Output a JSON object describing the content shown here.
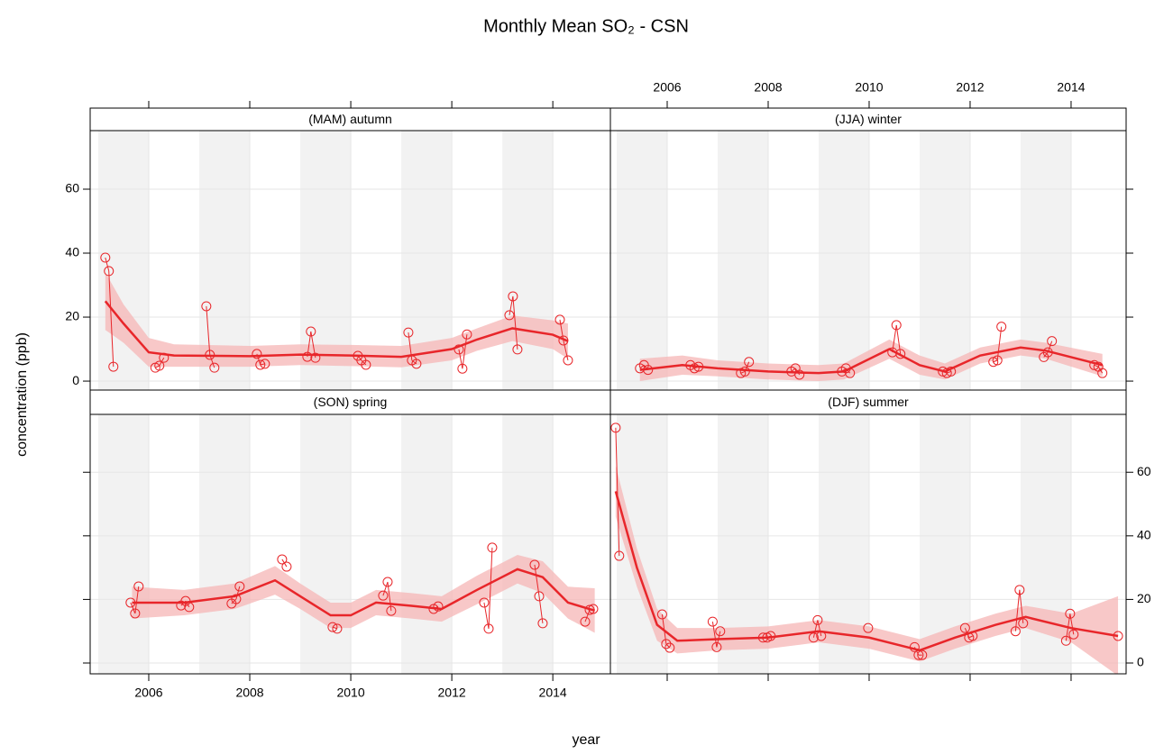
{
  "page": {
    "title": "Monthly Mean SO₂ - CSN",
    "x_label": "year",
    "y_label": "concentration (ppb)"
  },
  "chart_data": [
    {
      "type": "scatter",
      "title": "(MAM) autumn",
      "xlim": [
        2004.84,
        2015.14
      ],
      "ylim": [
        -2.8,
        78.3
      ],
      "xticks": [
        2006,
        2008,
        2010,
        2012,
        2014
      ],
      "yticks": [
        0,
        20,
        40,
        60
      ],
      "grid": true,
      "points": {
        "color": "#e8262a",
        "x": [
          2005.14,
          2005.21,
          2005.3,
          2006.13,
          2006.21,
          2006.3,
          2007.14,
          2007.21,
          2007.3,
          2008.14,
          2008.21,
          2008.3,
          2009.14,
          2009.21,
          2009.3,
          2010.14,
          2010.21,
          2010.3,
          2011.14,
          2011.21,
          2011.3,
          2012.14,
          2012.21,
          2012.3,
          2013.14,
          2013.21,
          2013.3,
          2014.14,
          2014.21,
          2014.3
        ],
        "y": [
          38.6,
          34.4,
          4.5,
          4.2,
          4.8,
          7.3,
          23.4,
          8.2,
          4.2,
          8.5,
          5.1,
          5.4,
          7.6,
          15.5,
          7.3,
          7.9,
          6.5,
          5.1,
          15.2,
          6.5,
          5.4,
          9.9,
          3.9,
          14.6,
          20.6,
          26.5,
          9.9,
          19.2,
          12.7,
          6.5
        ]
      },
      "trend": {
        "color": "#e8262a",
        "band_color": "#f5b5b5",
        "x": [
          2005.14,
          2005.5,
          2006,
          2006.5,
          2008,
          2009,
          2010,
          2011,
          2012,
          2012.5,
          2013.2,
          2014,
          2014.3
        ],
        "y": [
          25,
          18,
          9,
          8,
          7.8,
          8.3,
          8,
          7.6,
          10,
          13,
          16.5,
          14.5,
          12.5
        ],
        "lower": [
          16,
          12,
          4.5,
          4.5,
          4.5,
          5,
          4.7,
          4.3,
          6.5,
          9.5,
          12.5,
          10,
          7
        ],
        "upper": [
          34,
          24,
          13.5,
          11.5,
          11,
          11.5,
          11.3,
          11,
          13.5,
          16.5,
          20.5,
          19,
          18
        ]
      }
    },
    {
      "type": "scatter",
      "title": "(JJA) winter",
      "xlim": [
        2004.875,
        2015.09
      ],
      "ylim": [
        -2.8,
        78.3
      ],
      "xticks": [
        2006,
        2008,
        2010,
        2012,
        2014
      ],
      "yticks": [
        0,
        20,
        40,
        60
      ],
      "grid": true,
      "points": {
        "color": "#e8262a",
        "x": [
          2005.46,
          2005.54,
          2005.62,
          2006.46,
          2006.54,
          2006.62,
          2007.46,
          2007.54,
          2007.62,
          2008.46,
          2008.54,
          2008.62,
          2009.46,
          2009.54,
          2009.62,
          2010.46,
          2010.54,
          2010.62,
          2011.46,
          2011.54,
          2011.62,
          2012.46,
          2012.54,
          2012.62,
          2013.46,
          2013.54,
          2013.62,
          2014.46,
          2014.54,
          2014.62
        ],
        "y": [
          4,
          5,
          3.5,
          5,
          4,
          4.5,
          2.5,
          3,
          6,
          3,
          4,
          2,
          3,
          4,
          2.5,
          9,
          17.5,
          8.5,
          3,
          2.5,
          3,
          6,
          6.5,
          17,
          7.5,
          9,
          12.5,
          5,
          4.5,
          2.5
        ]
      },
      "trend": {
        "color": "#e8262a",
        "band_color": "#f5b5b5",
        "x": [
          2005.46,
          2006.3,
          2007,
          2008,
          2009,
          2009.5,
          2010.4,
          2011,
          2011.5,
          2012.2,
          2013,
          2013.5,
          2014.62
        ],
        "y": [
          3.5,
          5,
          4,
          3,
          2.5,
          3,
          10,
          5,
          3,
          8,
          10.5,
          9.5,
          5
        ],
        "lower": [
          0,
          2,
          1.5,
          0.5,
          0,
          0.5,
          7,
          2,
          0.5,
          5.5,
          8,
          7,
          1.5
        ],
        "upper": [
          7,
          8,
          6.5,
          5.5,
          5,
          5.5,
          13,
          8,
          5.5,
          10.5,
          13,
          12,
          8.5
        ]
      }
    },
    {
      "type": "scatter",
      "title": "(SON)  spring",
      "xlim": [
        2004.84,
        2015.14
      ],
      "ylim": [
        -3.4,
        78.2
      ],
      "xticks": [
        2006,
        2008,
        2010,
        2012,
        2014
      ],
      "yticks": [
        0,
        20,
        40,
        60
      ],
      "grid": true,
      "points": {
        "color": "#e8262a",
        "x": [
          2005.64,
          2005.73,
          2005.8,
          2006.64,
          2006.73,
          2006.8,
          2007.64,
          2007.73,
          2007.8,
          2008.64,
          2008.73,
          2009.64,
          2009.73,
          2010.64,
          2010.73,
          2010.8,
          2011.64,
          2011.73,
          2012.64,
          2012.73,
          2012.8,
          2013.64,
          2013.73,
          2013.8,
          2014.64,
          2014.73,
          2014.8
        ],
        "y": [
          19,
          15.6,
          24.1,
          18.1,
          19.5,
          17.6,
          18.7,
          20.1,
          24.1,
          32.6,
          30.3,
          11.3,
          10.8,
          21.2,
          25.5,
          16.4,
          17,
          17.8,
          19,
          10.8,
          36.3,
          30.9,
          21,
          12.5,
          13,
          16.7,
          17
        ]
      },
      "trend": {
        "color": "#e8262a",
        "band_color": "#f5b5b5",
        "x": [
          2005.67,
          2006.7,
          2007.7,
          2008.5,
          2009,
          2009.6,
          2010,
          2010.5,
          2011.2,
          2011.8,
          2012.5,
          2013.3,
          2013.8,
          2014.3,
          2014.83
        ],
        "y": [
          19,
          19,
          21,
          26,
          21,
          15,
          15,
          19,
          18,
          17,
          23,
          29.5,
          27,
          19,
          16.5
        ],
        "lower": [
          14,
          15,
          17,
          21.5,
          17,
          11,
          11,
          15,
          14,
          13,
          18.5,
          25,
          22,
          14,
          9.5
        ],
        "upper": [
          24,
          23,
          25,
          30.5,
          25,
          19,
          19,
          23,
          22,
          21,
          27.5,
          34,
          32,
          24,
          23.5
        ]
      }
    },
    {
      "type": "scatter",
      "title": "(DJF)  summer",
      "xlim": [
        2004.875,
        2015.09
      ],
      "ylim": [
        -3.4,
        78.2
      ],
      "xticks": [
        2006,
        2008,
        2010,
        2012,
        2014
      ],
      "yticks": [
        0,
        20,
        40,
        60
      ],
      "grid": true,
      "points": {
        "color": "#e8262a",
        "x": [
          2004.98,
          2005.05,
          2005.9,
          2005.98,
          2006.05,
          2006.9,
          2006.98,
          2007.05,
          2007.9,
          2007.98,
          2008.05,
          2008.9,
          2008.98,
          2009.05,
          2009.98,
          2010.9,
          2010.98,
          2011.05,
          2011.9,
          2011.98,
          2012.05,
          2012.9,
          2012.98,
          2013.05,
          2013.9,
          2013.98,
          2014.05,
          2014.93
        ],
        "y": [
          74,
          33.7,
          15.3,
          6,
          4.8,
          13,
          5,
          10,
          8,
          8,
          8.5,
          8,
          13.5,
          8.5,
          11,
          5,
          2.5,
          2.5,
          11,
          8,
          8.5,
          10,
          23,
          12.5,
          7,
          15.5,
          9,
          8.5
        ]
      },
      "trend": {
        "color": "#e8262a",
        "band_color": "#f5b5b5",
        "x": [
          2004.98,
          2005.4,
          2005.8,
          2006.2,
          2007,
          2008,
          2009,
          2010,
          2011,
          2011.7,
          2012.5,
          2013.1,
          2014,
          2014.93
        ],
        "y": [
          54,
          30,
          12,
          7,
          7.5,
          8,
          10,
          8,
          4,
          8,
          12,
          14.5,
          11,
          8.5
        ],
        "lower": [
          46,
          24,
          7,
          3,
          4,
          4.5,
          6.5,
          4.5,
          0.5,
          4.5,
          8.5,
          11,
          6.5,
          -4
        ],
        "upper": [
          62,
          36,
          17,
          11,
          11,
          11.5,
          13.5,
          11.5,
          7.5,
          11.5,
          15.5,
          18,
          15.5,
          21
        ]
      }
    }
  ]
}
